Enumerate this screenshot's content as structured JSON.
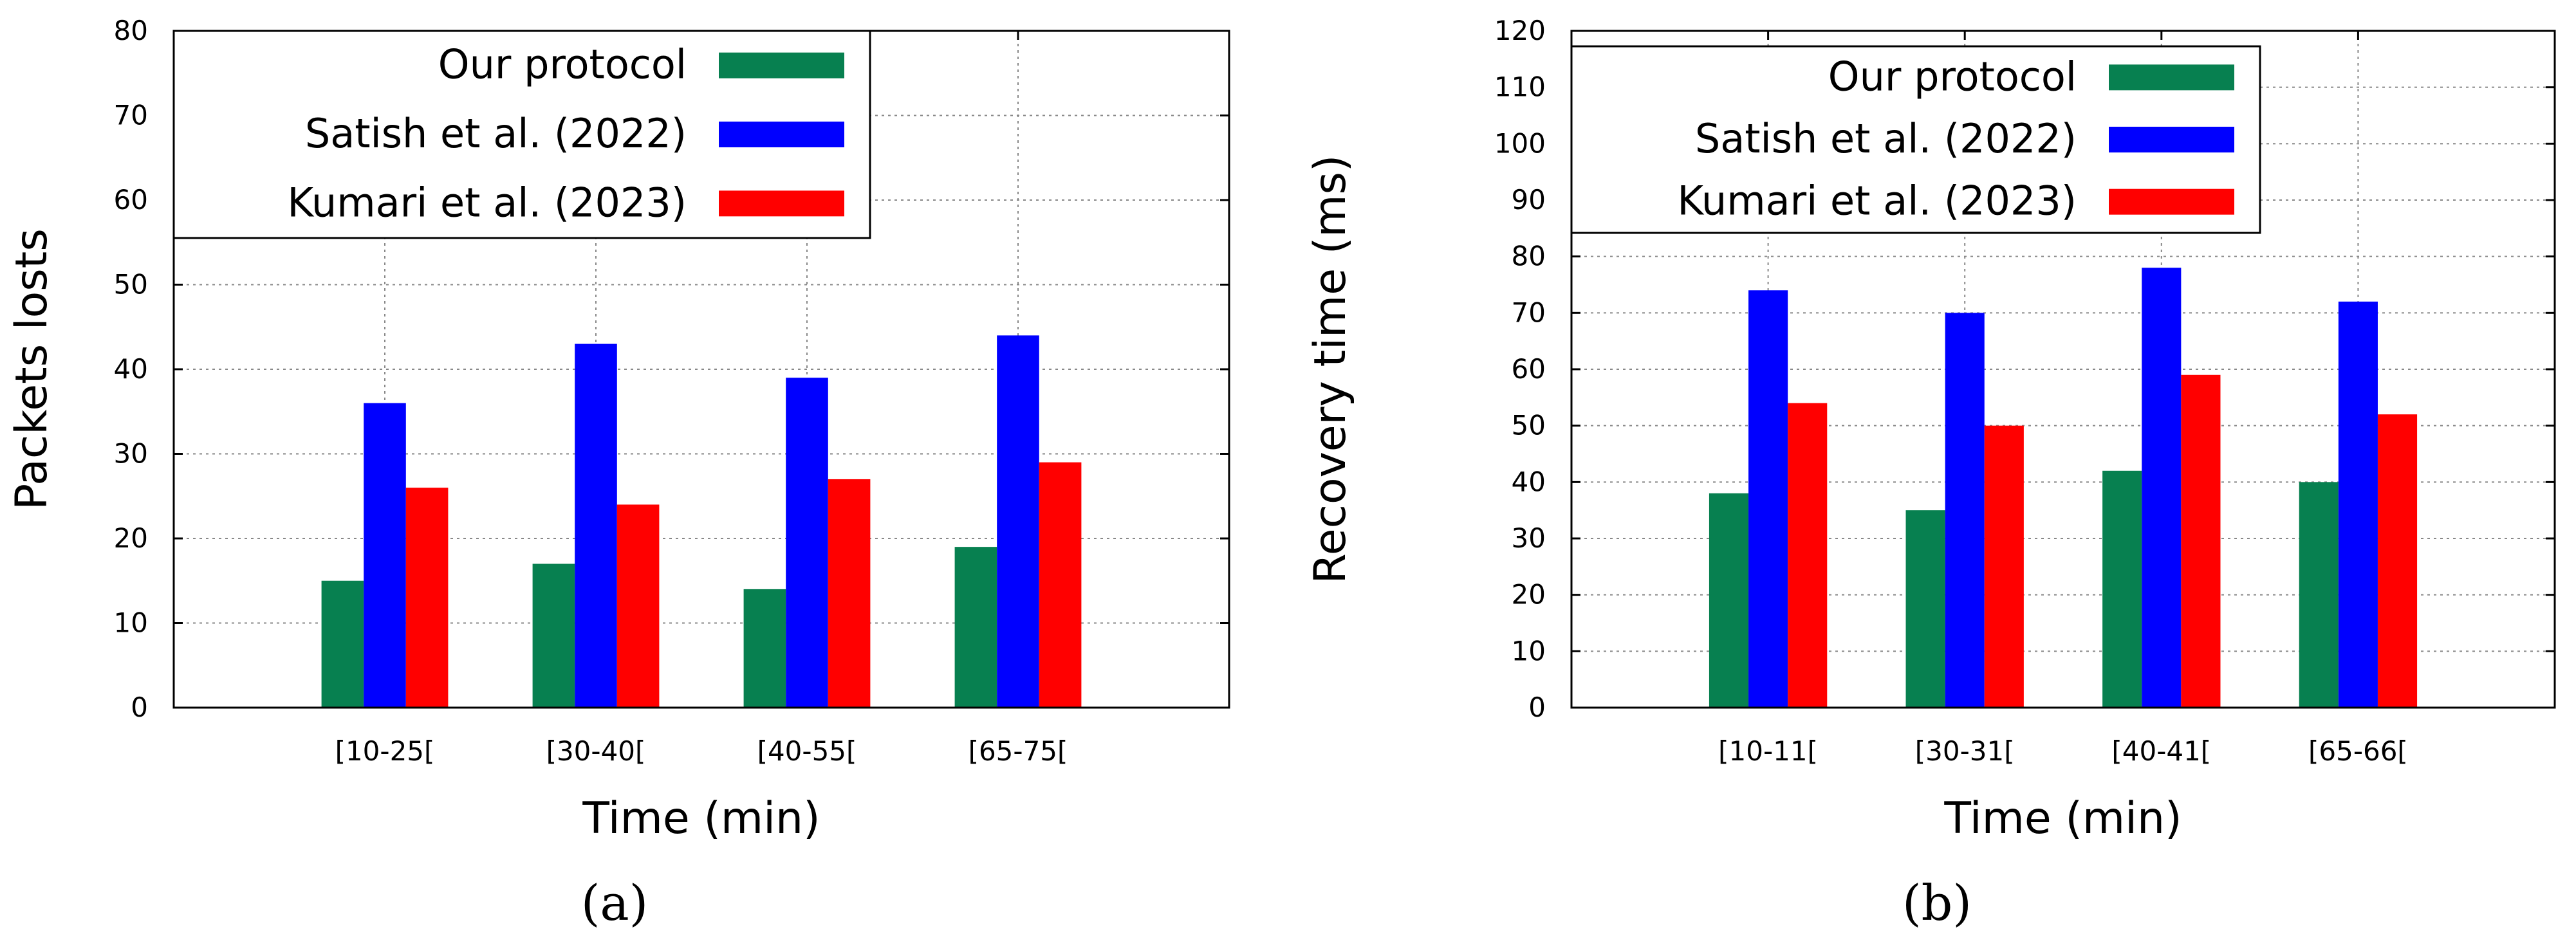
{
  "chart_data": [
    {
      "type": "bar",
      "caption": "(a)",
      "categories": [
        "[10-25[",
        "[30-40[",
        "[40-55[",
        "[65-75["
      ],
      "series": [
        {
          "name": "Our protocol",
          "color": "#078050",
          "values": [
            15,
            17,
            14,
            19
          ]
        },
        {
          "name": "Satish et al. (2022)",
          "color": "#0000ff",
          "values": [
            36,
            43,
            39,
            44
          ]
        },
        {
          "name": "Kumari et al. (2023)",
          "color": "#ff0000",
          "values": [
            26,
            24,
            27,
            29
          ]
        }
      ],
      "xlabel": "Time (min)",
      "ylabel": "Packets losts",
      "ylim": [
        0,
        80
      ],
      "yticks": [
        0,
        10,
        20,
        30,
        40,
        50,
        60,
        70,
        80
      ],
      "grid": true,
      "legend_position": "top-left"
    },
    {
      "type": "bar",
      "caption": "(b)",
      "categories": [
        "[10-11[",
        "[30-31[",
        "[40-41[",
        "[65-66["
      ],
      "series": [
        {
          "name": "Our protocol",
          "color": "#078050",
          "values": [
            38,
            35,
            42,
            40
          ]
        },
        {
          "name": "Satish et al. (2022)",
          "color": "#0000ff",
          "values": [
            74,
            70,
            78,
            72
          ]
        },
        {
          "name": "Kumari et al. (2023)",
          "color": "#ff0000",
          "values": [
            54,
            50,
            59,
            52
          ]
        }
      ],
      "xlabel": "Time (min)",
      "ylabel": "Recovery time (ms)",
      "ylim": [
        0,
        120
      ],
      "yticks": [
        0,
        10,
        20,
        30,
        40,
        50,
        60,
        70,
        80,
        90,
        100,
        110,
        120
      ],
      "grid": true,
      "legend_position": "top-left"
    }
  ]
}
